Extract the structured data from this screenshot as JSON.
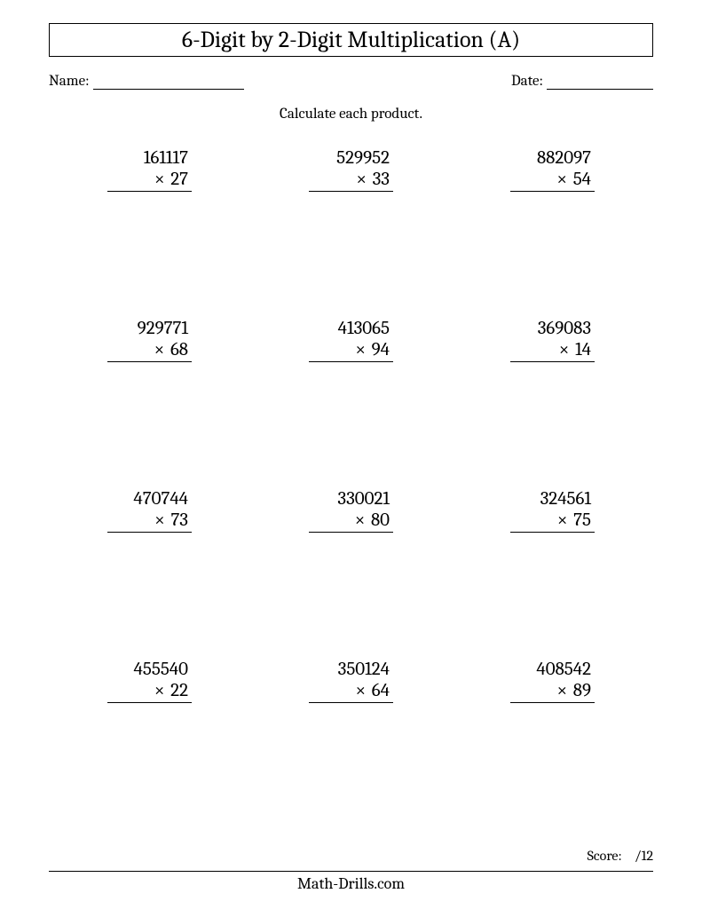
{
  "worksheet": {
    "title": "6-Digit by 2-Digit Multiplication (A)",
    "name_label": "Name:",
    "date_label": "Date:",
    "instructions": "Calculate each product.",
    "mult_sign": "×",
    "score_label": "Score:",
    "score_total": "/12",
    "footer_site": "Math-Drills.com",
    "title_fontsize": 26,
    "body_fontsize": 17,
    "problem_fontsize": 21,
    "footer_fontsize": 18,
    "text_color": "#000000",
    "background_color": "#ffffff",
    "border_color": "#000000",
    "grid_cols": 3,
    "grid_rows": 4,
    "problems": [
      {
        "multiplicand": "161117",
        "multiplier": "27"
      },
      {
        "multiplicand": "529952",
        "multiplier": "33"
      },
      {
        "multiplicand": "882097",
        "multiplier": "54"
      },
      {
        "multiplicand": "929771",
        "multiplier": "68"
      },
      {
        "multiplicand": "413065",
        "multiplier": "94"
      },
      {
        "multiplicand": "369083",
        "multiplier": "14"
      },
      {
        "multiplicand": "470744",
        "multiplier": "73"
      },
      {
        "multiplicand": "330021",
        "multiplier": "80"
      },
      {
        "multiplicand": "324561",
        "multiplier": "75"
      },
      {
        "multiplicand": "455540",
        "multiplier": "22"
      },
      {
        "multiplicand": "350124",
        "multiplier": "64"
      },
      {
        "multiplicand": "408542",
        "multiplier": "89"
      }
    ]
  }
}
